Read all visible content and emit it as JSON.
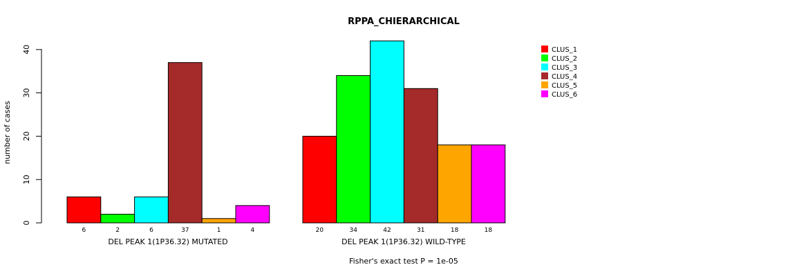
{
  "chart_data": {
    "type": "bar",
    "title": "RPPA_CHIERARCHICAL",
    "ylabel": "number of cases",
    "ylim": [
      0,
      42
    ],
    "yticks": [
      0,
      10,
      20,
      30,
      40
    ],
    "clusters": [
      "CLUS_1",
      "CLUS_2",
      "CLUS_3",
      "CLUS_4",
      "CLUS_5",
      "CLUS_6"
    ],
    "colors": [
      "#ff0000",
      "#00ff00",
      "#00ffff",
      "#a52a2a",
      "#ffa500",
      "#ff00ff"
    ],
    "groups": [
      {
        "name": "DEL PEAK  1(1P36.32) MUTATED",
        "values": [
          6,
          2,
          6,
          37,
          1,
          4
        ]
      },
      {
        "name": "DEL PEAK  1(1P36.32) WILD-TYPE",
        "values": [
          20,
          34,
          42,
          31,
          18,
          18
        ]
      }
    ],
    "legend_position": "top-right",
    "footnote": "Fisher's exact test P = 1e-05"
  }
}
